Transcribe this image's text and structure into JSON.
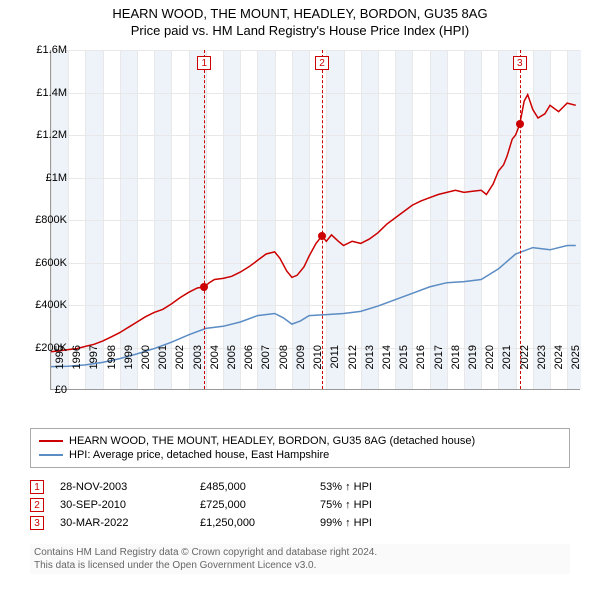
{
  "title": {
    "main": "HEARN WOOD, THE MOUNT, HEADLEY, BORDON, GU35 8AG",
    "sub": "Price paid vs. HM Land Registry's House Price Index (HPI)"
  },
  "chart": {
    "type": "line",
    "background_color": "#ffffff",
    "grid_color": "#e8e8e8",
    "band_color": "#eef3f9",
    "axis_color": "#999999",
    "ylim": [
      0,
      1600000
    ],
    "ytick_step": 200000,
    "ytick_labels": [
      "£0",
      "£200K",
      "£400K",
      "£600K",
      "£800K",
      "£1M",
      "£1.2M",
      "£1.4M",
      "£1.6M"
    ],
    "xlim": [
      1995,
      2025.8
    ],
    "xtick_years": [
      1995,
      1996,
      1997,
      1998,
      1999,
      2000,
      2001,
      2002,
      2003,
      2004,
      2005,
      2006,
      2007,
      2008,
      2009,
      2010,
      2011,
      2012,
      2013,
      2014,
      2015,
      2016,
      2017,
      2018,
      2019,
      2020,
      2021,
      2022,
      2023,
      2024,
      2025
    ],
    "series": {
      "property": {
        "label": "HEARN WOOD, THE MOUNT, HEADLEY, BORDON, GU35 8AG (detached house)",
        "color": "#cc0000",
        "line_width": 1.5,
        "data": [
          [
            1995.0,
            180000
          ],
          [
            1995.5,
            185000
          ],
          [
            1996.0,
            190000
          ],
          [
            1996.5,
            195000
          ],
          [
            1997.0,
            205000
          ],
          [
            1997.5,
            215000
          ],
          [
            1998.0,
            230000
          ],
          [
            1998.5,
            250000
          ],
          [
            1999.0,
            270000
          ],
          [
            1999.5,
            295000
          ],
          [
            2000.0,
            320000
          ],
          [
            2000.5,
            345000
          ],
          [
            2001.0,
            365000
          ],
          [
            2001.5,
            380000
          ],
          [
            2002.0,
            405000
          ],
          [
            2002.5,
            435000
          ],
          [
            2003.0,
            460000
          ],
          [
            2003.5,
            480000
          ],
          [
            2003.91,
            485000
          ],
          [
            2004.2,
            505000
          ],
          [
            2004.5,
            520000
          ],
          [
            2005.0,
            525000
          ],
          [
            2005.5,
            535000
          ],
          [
            2006.0,
            555000
          ],
          [
            2006.5,
            580000
          ],
          [
            2007.0,
            610000
          ],
          [
            2007.5,
            640000
          ],
          [
            2008.0,
            650000
          ],
          [
            2008.3,
            620000
          ],
          [
            2008.7,
            560000
          ],
          [
            2009.0,
            530000
          ],
          [
            2009.3,
            540000
          ],
          [
            2009.7,
            580000
          ],
          [
            2010.0,
            630000
          ],
          [
            2010.4,
            690000
          ],
          [
            2010.75,
            725000
          ],
          [
            2011.0,
            700000
          ],
          [
            2011.3,
            730000
          ],
          [
            2011.7,
            700000
          ],
          [
            2012.0,
            680000
          ],
          [
            2012.5,
            700000
          ],
          [
            2013.0,
            690000
          ],
          [
            2013.5,
            710000
          ],
          [
            2014.0,
            740000
          ],
          [
            2014.5,
            780000
          ],
          [
            2015.0,
            810000
          ],
          [
            2015.5,
            840000
          ],
          [
            2016.0,
            870000
          ],
          [
            2016.5,
            890000
          ],
          [
            2017.0,
            905000
          ],
          [
            2017.5,
            920000
          ],
          [
            2018.0,
            930000
          ],
          [
            2018.5,
            940000
          ],
          [
            2019.0,
            930000
          ],
          [
            2019.5,
            935000
          ],
          [
            2020.0,
            940000
          ],
          [
            2020.3,
            920000
          ],
          [
            2020.7,
            970000
          ],
          [
            2021.0,
            1030000
          ],
          [
            2021.3,
            1060000
          ],
          [
            2021.5,
            1100000
          ],
          [
            2021.8,
            1180000
          ],
          [
            2022.0,
            1200000
          ],
          [
            2022.24,
            1250000
          ],
          [
            2022.5,
            1360000
          ],
          [
            2022.7,
            1390000
          ],
          [
            2023.0,
            1320000
          ],
          [
            2023.3,
            1280000
          ],
          [
            2023.7,
            1300000
          ],
          [
            2024.0,
            1340000
          ],
          [
            2024.5,
            1310000
          ],
          [
            2025.0,
            1350000
          ],
          [
            2025.5,
            1340000
          ]
        ]
      },
      "hpi": {
        "label": "HPI: Average price, detached house, East Hampshire",
        "color": "#5b8cc4",
        "line_width": 1.5,
        "data": [
          [
            1995.0,
            110000
          ],
          [
            1996.0,
            112000
          ],
          [
            1997.0,
            118000
          ],
          [
            1998.0,
            130000
          ],
          [
            1999.0,
            148000
          ],
          [
            2000.0,
            170000
          ],
          [
            2001.0,
            195000
          ],
          [
            2002.0,
            225000
          ],
          [
            2003.0,
            260000
          ],
          [
            2004.0,
            290000
          ],
          [
            2005.0,
            300000
          ],
          [
            2006.0,
            320000
          ],
          [
            2007.0,
            350000
          ],
          [
            2008.0,
            360000
          ],
          [
            2008.5,
            340000
          ],
          [
            2009.0,
            310000
          ],
          [
            2009.5,
            325000
          ],
          [
            2010.0,
            350000
          ],
          [
            2011.0,
            355000
          ],
          [
            2012.0,
            360000
          ],
          [
            2013.0,
            370000
          ],
          [
            2014.0,
            395000
          ],
          [
            2015.0,
            425000
          ],
          [
            2016.0,
            455000
          ],
          [
            2017.0,
            485000
          ],
          [
            2018.0,
            505000
          ],
          [
            2019.0,
            510000
          ],
          [
            2020.0,
            520000
          ],
          [
            2021.0,
            570000
          ],
          [
            2022.0,
            640000
          ],
          [
            2023.0,
            670000
          ],
          [
            2024.0,
            660000
          ],
          [
            2025.0,
            680000
          ],
          [
            2025.5,
            680000
          ]
        ]
      }
    },
    "markers": [
      {
        "n": "1",
        "x": 2003.91,
        "y": 485000,
        "dash_color": "#cc0000",
        "dot_color": "#cc0000"
      },
      {
        "n": "2",
        "x": 2010.75,
        "y": 725000,
        "dash_color": "#cc0000",
        "dot_color": "#cc0000"
      },
      {
        "n": "3",
        "x": 2022.24,
        "y": 1250000,
        "dash_color": "#cc0000",
        "dot_color": "#cc0000"
      }
    ]
  },
  "transactions": [
    {
      "n": "1",
      "date": "28-NOV-2003",
      "price": "£485,000",
      "relhpi": "53% ↑ HPI"
    },
    {
      "n": "2",
      "date": "30-SEP-2010",
      "price": "£725,000",
      "relhpi": "75% ↑ HPI"
    },
    {
      "n": "3",
      "date": "30-MAR-2022",
      "price": "£1,250,000",
      "relhpi": "99% ↑ HPI"
    }
  ],
  "footer": {
    "line1": "Contains HM Land Registry data © Crown copyright and database right 2024.",
    "line2": "This data is licensed under the Open Government Licence v3.0."
  }
}
